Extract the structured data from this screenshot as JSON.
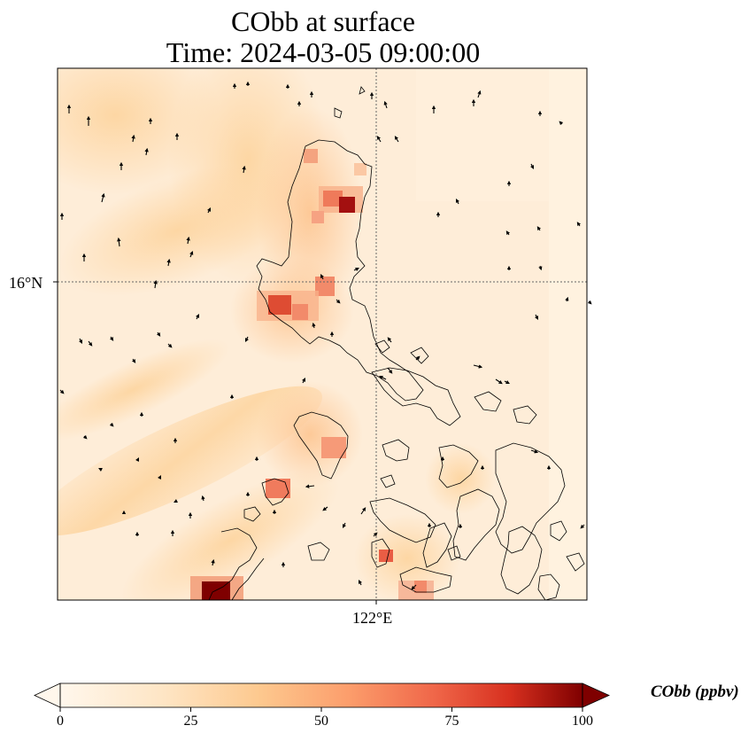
{
  "title": {
    "line1": "CObb at surface",
    "line2": "Time: 2024-03-05 09:00:00"
  },
  "axes": {
    "lat_tick": "16°N",
    "lon_tick": "122°E"
  },
  "colorbar": {
    "label": "CObb (ppbv)",
    "ticks": [
      "0",
      "25",
      "50",
      "75",
      "100"
    ],
    "min": 0,
    "max": 100,
    "colormap": "OrRd",
    "extend": "both"
  },
  "colors": {
    "low": "#fff7ec",
    "mid": "#fdc38d",
    "high": "#d7301f",
    "max": "#7f0000"
  }
}
